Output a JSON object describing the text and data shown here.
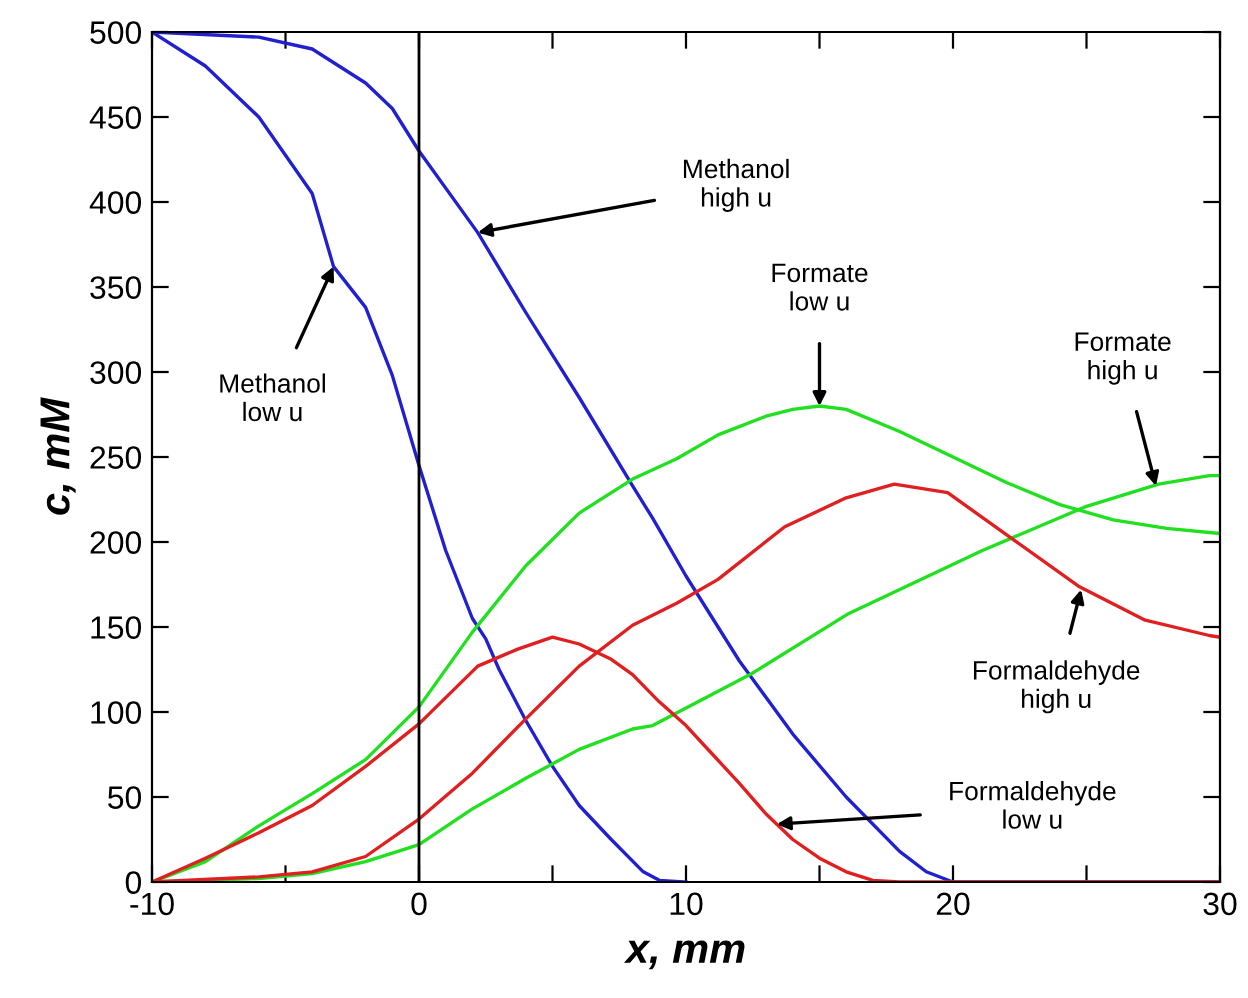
{
  "chart_data": {
    "type": "line",
    "xlabel": "x, mm",
    "ylabel": "c, mM",
    "xlim": [
      -10,
      30
    ],
    "ylim": [
      0,
      500
    ],
    "xticks": [
      -10,
      {
        "value": -5,
        "label": null
      },
      0,
      {
        "value": 5,
        "label": null
      },
      10,
      {
        "value": 15,
        "label": null
      },
      20,
      {
        "value": 25,
        "label": null
      },
      30
    ],
    "yticks": [
      0,
      50,
      100,
      150,
      200,
      250,
      300,
      350,
      400,
      450,
      500
    ],
    "grid": false,
    "legend": false,
    "marker": "none",
    "line_style": "solid",
    "ref_lines": [
      {
        "axis": "x",
        "value": 0,
        "label": null,
        "color": "#000000"
      }
    ],
    "series": [
      {
        "color": "#2020d0",
        "x": [
          -10,
          -8,
          -6,
          -4,
          -3.2,
          -2,
          -1,
          0,
          1,
          2,
          2.5,
          3,
          4,
          5,
          6,
          7.2,
          8.4,
          9,
          10
        ],
        "values": [
          500,
          480,
          450,
          405,
          362,
          338,
          298,
          245,
          195,
          155,
          143,
          125,
          95,
          68,
          45,
          25,
          6,
          1,
          0
        ]
      },
      {
        "color": "#2020d0",
        "x": [
          -10,
          -6,
          -4,
          -2,
          -1,
          0,
          2.2,
          4,
          6,
          8,
          8.75,
          10,
          12,
          14,
          16,
          18,
          19,
          20,
          30
        ],
        "values": [
          500,
          497,
          490,
          470,
          455,
          430,
          382,
          335,
          285,
          233,
          214,
          180,
          130,
          87,
          50,
          18,
          6,
          0,
          0
        ]
      },
      {
        "color": "#20e020",
        "x": [
          -10,
          -8,
          -6,
          -4,
          -2,
          0,
          2,
          4,
          6,
          8,
          9.65,
          11.2,
          13,
          14,
          15,
          16,
          18,
          20,
          22,
          24,
          26,
          28,
          30
        ],
        "values": [
          0,
          12,
          33,
          52,
          72,
          103,
          147,
          186,
          217,
          237,
          249,
          263,
          274,
          278,
          280,
          278,
          265,
          250,
          235,
          222,
          213,
          208,
          205
        ]
      },
      {
        "color": "#20e020",
        "x": [
          -10,
          -6,
          -4,
          -2,
          0,
          2,
          4,
          6,
          8,
          8.75,
          12.4,
          16.1,
          21.1,
          25,
          27.7,
          29.6,
          30
        ],
        "values": [
          0,
          2,
          5,
          12,
          22,
          43,
          61,
          78,
          90,
          92,
          122,
          158,
          195,
          221,
          234,
          239,
          239
        ]
      },
      {
        "color": "#e02020",
        "x": [
          -10,
          -8,
          -6,
          -4,
          -2,
          0,
          2.2,
          3.7,
          5,
          6,
          7.2,
          8,
          9,
          10,
          11,
          12,
          13,
          14,
          15,
          16,
          17,
          18,
          30
        ],
        "values": [
          0,
          14,
          29,
          45,
          68,
          93,
          127,
          137,
          144,
          140,
          131,
          122,
          106,
          92,
          75,
          58,
          40,
          25,
          14,
          6,
          1,
          0,
          0
        ]
      },
      {
        "color": "#e02020",
        "x": [
          -10,
          -6,
          -4,
          -2,
          0,
          2,
          4,
          6,
          8,
          9.65,
          11.2,
          13.7,
          16,
          17.8,
          19.8,
          22.3,
          24.7,
          27.2,
          29.6,
          30
        ],
        "values": [
          0,
          3,
          6,
          15,
          37,
          64,
          96,
          127,
          151,
          164,
          178,
          209,
          226,
          234,
          229,
          201,
          174,
          154,
          145,
          144
        ]
      }
    ],
    "annotations": [
      {
        "text": "Methanol\nlow u",
        "x": -3.2,
        "y": 362
      },
      {
        "text": "Methanol\nhigh u",
        "x": 2.2,
        "y": 382
      },
      {
        "text": "Formate\nlow u",
        "x": 15,
        "y": 280
      },
      {
        "text": "Formate\nhigh u",
        "x": 27.6,
        "y": 233
      },
      {
        "text": "Formaldehyde\nhigh u",
        "x": 24.8,
        "y": 172
      },
      {
        "text": "Formaldehyde\nlow u",
        "x": 13.4,
        "y": 34
      }
    ]
  }
}
